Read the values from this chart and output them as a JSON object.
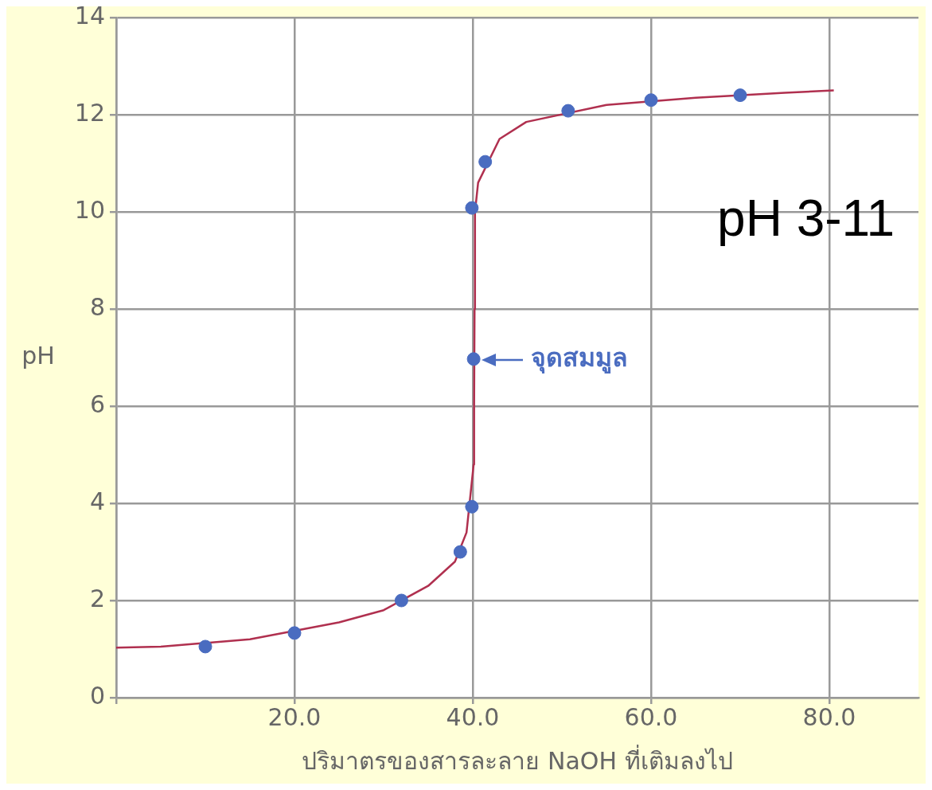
{
  "chart_data": {
    "type": "scatter",
    "xlabel": "ปริมาตรของสารละลาย NaOH ที่เติมลงไป",
    "ylabel": "pH",
    "annotations": [
      {
        "text": "จุดสมมูล",
        "x": 40.1,
        "y": 6.95
      },
      "pH 3-11"
    ],
    "xlim": [
      0,
      90
    ],
    "xticks": [
      {
        "value": 0,
        "label": null
      },
      {
        "value": 20,
        "label": "20.0"
      },
      {
        "value": 40,
        "label": "40.0"
      },
      {
        "value": 60,
        "label": "60.0"
      },
      {
        "value": 80,
        "label": "80.0"
      }
    ],
    "ylim": [
      0,
      14
    ],
    "yticks": [
      0,
      2,
      4,
      6,
      8,
      10,
      12,
      14
    ],
    "grid": true,
    "legend": false,
    "marker": "circle",
    "series": [
      {
        "type": "line",
        "marker": "none",
        "color": "#b0304f",
        "x": [
          0,
          5,
          15,
          25,
          30,
          35,
          38,
          39.3,
          40.1,
          40.15,
          40.2,
          40.25,
          40.6,
          43,
          46,
          55,
          65,
          75,
          80.5
        ],
        "values": [
          1.03,
          1.05,
          1.2,
          1.55,
          1.8,
          2.3,
          2.8,
          3.4,
          4.8,
          6,
          8,
          10,
          10.6,
          11.5,
          11.85,
          12.2,
          12.35,
          12.45,
          12.5
        ]
      },
      {
        "type": "scatter",
        "color": "#4a6cc0",
        "x": [
          10,
          20,
          32,
          38.6,
          39.9,
          40.1,
          39.9,
          41.4,
          50.7,
          60,
          70
        ],
        "values": [
          1.05,
          1.33,
          2.0,
          3.0,
          3.93,
          6.97,
          10.08,
          11.03,
          12.08,
          12.3,
          12.4
        ]
      }
    ]
  }
}
